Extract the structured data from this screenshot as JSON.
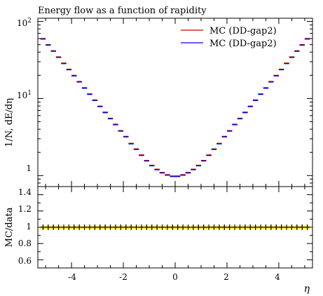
{
  "chart_data": {
    "type": "line",
    "title": "Energy flow as a function of rapidity",
    "xlabel": "η",
    "ylabel": "1/N, dE/dη",
    "ratio_ylabel": "MC/data",
    "xlim": [
      -5.3,
      5.3
    ],
    "ylim": [
      0.72,
      110
    ],
    "yscale": "log",
    "ratio_ylim": [
      0.5,
      1.5
    ],
    "x_ticks": [
      "-4",
      "-2",
      "0",
      "2",
      "4"
    ],
    "y_ticks": [
      "10²",
      "10¹",
      "1"
    ],
    "ratio_ticks": [
      "1.4",
      "1.2",
      "1",
      "0.8",
      "0.6"
    ],
    "legend_position": "top-right",
    "series": [
      {
        "name": "MC (DD-gap2)",
        "color": "#cc0000",
        "x": [
          -5.1,
          -4.9,
          -4.7,
          -4.5,
          -4.3,
          -4.1,
          -3.9,
          -3.7,
          -3.5,
          -3.3,
          -3.1,
          -2.9,
          -2.7,
          -2.5,
          -2.3,
          -2.1,
          -1.9,
          -1.7,
          -1.5,
          -1.3,
          -1.1,
          -0.9,
          -0.7,
          -0.5,
          -0.3,
          -0.1,
          0.1,
          0.3,
          0.5,
          0.7,
          0.9,
          1.1,
          1.3,
          1.5,
          1.7,
          1.9,
          2.1,
          2.3,
          2.5,
          2.7,
          2.9,
          3.1,
          3.3,
          3.5,
          3.7,
          3.9,
          4.1,
          4.3,
          4.5,
          4.7,
          4.9,
          5.1
        ],
        "y": [
          59.5,
          49.6,
          41.3,
          34.4,
          28.6,
          23.8,
          19.8,
          16.5,
          13.7,
          11.4,
          9.5,
          7.9,
          6.6,
          5.5,
          4.6,
          3.8,
          3.2,
          2.6,
          2.2,
          1.84,
          1.56,
          1.35,
          1.2,
          1.09,
          1.02,
          0.98,
          0.98,
          1.02,
          1.09,
          1.2,
          1.35,
          1.56,
          1.84,
          2.2,
          2.6,
          3.2,
          3.8,
          4.6,
          5.5,
          6.6,
          7.9,
          9.5,
          11.4,
          13.7,
          16.5,
          19.8,
          23.8,
          28.6,
          34.4,
          41.3,
          49.6,
          59.5
        ],
        "ratio": [
          1,
          1,
          1,
          1,
          1,
          1,
          1,
          1,
          1,
          1,
          1,
          1,
          1,
          1,
          1,
          1,
          1,
          1,
          1,
          1,
          1,
          1,
          1,
          1,
          1,
          1,
          1,
          1,
          1,
          1,
          1,
          1,
          1,
          1,
          1,
          1,
          1,
          1,
          1,
          1,
          1,
          1,
          1,
          1,
          1,
          1,
          1,
          1,
          1,
          1,
          1,
          1
        ]
      },
      {
        "name": "MC (DD-gap2)",
        "color": "#0000ee",
        "x": [
          -5.1,
          -4.9,
          -4.7,
          -4.5,
          -4.3,
          -4.1,
          -3.9,
          -3.7,
          -3.5,
          -3.3,
          -3.1,
          -2.9,
          -2.7,
          -2.5,
          -2.3,
          -2.1,
          -1.9,
          -1.7,
          -1.5,
          -1.3,
          -1.1,
          -0.9,
          -0.7,
          -0.5,
          -0.3,
          -0.1,
          0.1,
          0.3,
          0.5,
          0.7,
          0.9,
          1.1,
          1.3,
          1.5,
          1.7,
          1.9,
          2.1,
          2.3,
          2.5,
          2.7,
          2.9,
          3.1,
          3.3,
          3.5,
          3.7,
          3.9,
          4.1,
          4.3,
          4.5,
          4.7,
          4.9,
          5.1
        ],
        "y": [
          59.5,
          49.6,
          41.3,
          34.4,
          28.6,
          23.8,
          19.8,
          16.5,
          13.7,
          11.4,
          9.5,
          7.9,
          6.6,
          5.5,
          4.6,
          3.8,
          3.2,
          2.6,
          2.2,
          1.84,
          1.56,
          1.35,
          1.2,
          1.09,
          1.02,
          0.98,
          0.98,
          1.02,
          1.09,
          1.2,
          1.35,
          1.56,
          1.84,
          2.2,
          2.6,
          3.2,
          3.8,
          4.6,
          5.5,
          6.6,
          7.9,
          9.5,
          11.4,
          13.7,
          16.5,
          19.8,
          23.8,
          28.6,
          34.4,
          41.3,
          49.6,
          59.5
        ],
        "ratio": [
          1,
          1,
          1,
          1,
          1,
          1,
          1,
          1,
          1,
          1,
          1,
          1,
          1,
          1,
          1,
          1,
          1,
          1,
          1,
          1,
          1,
          1,
          1,
          1,
          1,
          1,
          1,
          1,
          1,
          1,
          1,
          1,
          1,
          1,
          1,
          1,
          1,
          1,
          1,
          1,
          1,
          1,
          1,
          1,
          1,
          1,
          1,
          1,
          1,
          1,
          1,
          1
        ]
      }
    ],
    "ratio_band_color": "#ffee00"
  }
}
